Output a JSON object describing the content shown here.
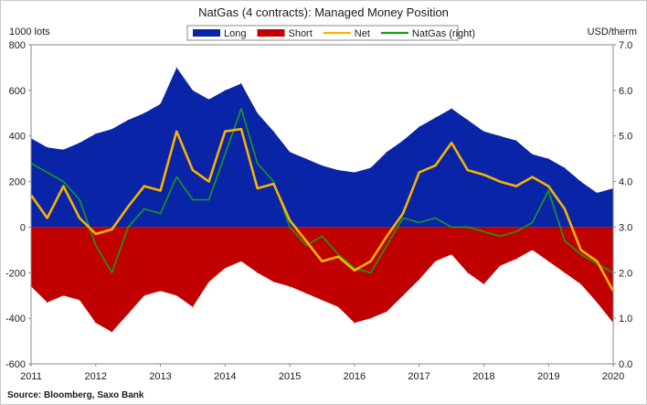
{
  "chart_data": {
    "type": "area",
    "title": "NatGas (4 contracts): Managed Money Position",
    "left_axis_label": "1000 lots",
    "right_axis_label": "USD/therm",
    "source": "Source: Bloomberg, Saxo Bank",
    "x_range": [
      2011,
      2020
    ],
    "x_tick_labels": [
      "2011",
      "2012",
      "2013",
      "2014",
      "2015",
      "2016",
      "2017",
      "2018",
      "2019",
      "2020"
    ],
    "y_left_range": [
      -600,
      800
    ],
    "y_left_tick_labels": [
      "-600",
      "-400",
      "-200",
      "0",
      "200",
      "400",
      "600",
      "800"
    ],
    "y_right_range": [
      0.0,
      7.0
    ],
    "y_right_tick_labels": [
      "0.0",
      "1.0",
      "2.0",
      "3.0",
      "4.0",
      "5.0",
      "6.0",
      "7.0"
    ],
    "legend": [
      {
        "key": "long",
        "label": "Long",
        "color": "#0a24a8",
        "kind": "area"
      },
      {
        "key": "short",
        "label": "Short",
        "color": "#c00000",
        "kind": "area"
      },
      {
        "key": "net",
        "label": "Net",
        "color": "#f5b400",
        "kind": "line"
      },
      {
        "key": "natgas",
        "label": "NatGas (right)",
        "color": "#1a9c1a",
        "kind": "line"
      }
    ],
    "x": [
      2011.0,
      2011.25,
      2011.5,
      2011.75,
      2012.0,
      2012.25,
      2012.5,
      2012.75,
      2013.0,
      2013.25,
      2013.5,
      2013.75,
      2014.0,
      2014.25,
      2014.5,
      2014.75,
      2015.0,
      2015.25,
      2015.5,
      2015.75,
      2016.0,
      2016.25,
      2016.5,
      2016.75,
      2017.0,
      2017.25,
      2017.5,
      2017.75,
      2018.0,
      2018.25,
      2018.5,
      2018.75,
      2019.0,
      2019.25,
      2019.5,
      2019.75,
      2020.0
    ],
    "series": [
      {
        "name": "Long",
        "unit": "1000 lots",
        "axis": "left",
        "values": [
          390,
          350,
          340,
          370,
          410,
          430,
          470,
          500,
          540,
          700,
          600,
          560,
          600,
          630,
          500,
          420,
          330,
          300,
          270,
          250,
          240,
          260,
          330,
          380,
          440,
          480,
          520,
          470,
          420,
          400,
          380,
          320,
          300,
          260,
          200,
          150,
          170
        ]
      },
      {
        "name": "Short",
        "unit": "1000 lots",
        "axis": "left",
        "values": [
          -260,
          -330,
          -300,
          -320,
          -420,
          -460,
          -380,
          -300,
          -280,
          -300,
          -350,
          -240,
          -180,
          -150,
          -200,
          -240,
          -260,
          -290,
          -320,
          -350,
          -420,
          -400,
          -370,
          -300,
          -230,
          -150,
          -120,
          -200,
          -250,
          -170,
          -140,
          -100,
          -150,
          -200,
          -250,
          -330,
          -420
        ]
      },
      {
        "name": "Net",
        "unit": "1000 lots",
        "axis": "left",
        "values": [
          140,
          40,
          180,
          40,
          -30,
          -10,
          90,
          180,
          160,
          420,
          250,
          200,
          420,
          430,
          170,
          190,
          30,
          -60,
          -150,
          -130,
          -190,
          -150,
          -40,
          60,
          240,
          270,
          370,
          250,
          230,
          200,
          180,
          220,
          180,
          80,
          -100,
          -150,
          -280
        ]
      },
      {
        "name": "NatGas (right)",
        "unit": "USD/therm",
        "axis": "right",
        "values": [
          4.4,
          4.2,
          4.0,
          3.6,
          2.6,
          2.0,
          3.0,
          3.4,
          3.3,
          4.1,
          3.6,
          3.6,
          4.6,
          5.6,
          4.4,
          4.0,
          3.0,
          2.6,
          2.8,
          2.4,
          2.1,
          2.0,
          2.6,
          3.2,
          3.1,
          3.2,
          3.0,
          3.0,
          2.9,
          2.8,
          2.9,
          3.1,
          3.8,
          2.7,
          2.4,
          2.2,
          2.0
        ]
      }
    ]
  }
}
